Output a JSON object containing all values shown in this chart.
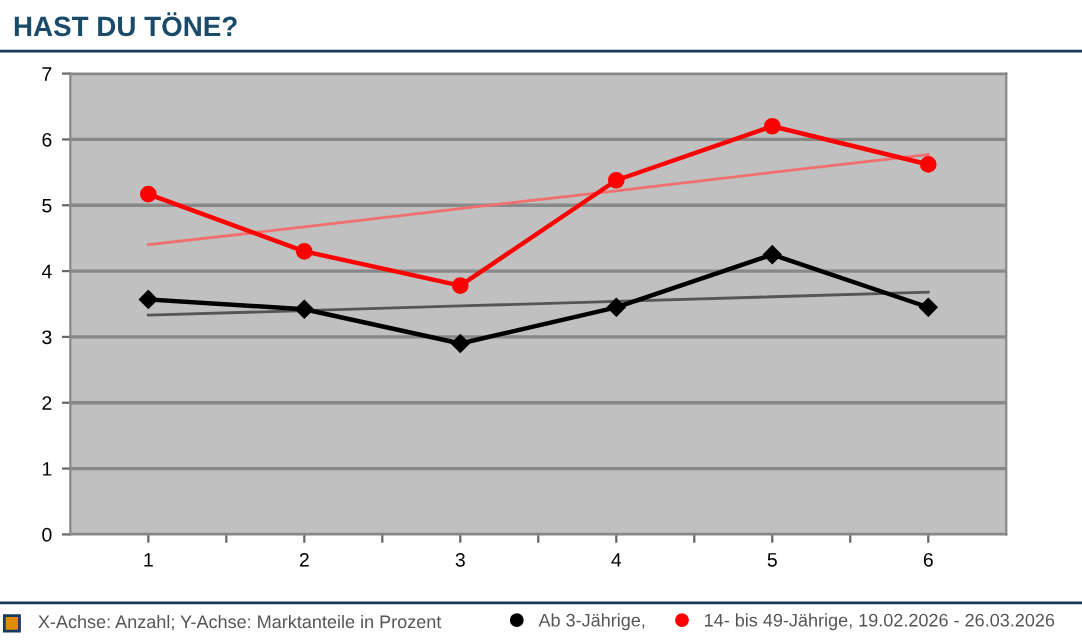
{
  "chart_data": {
    "type": "line",
    "title": "HAST DU TÖNE?",
    "x": [
      1,
      2,
      3,
      4,
      5,
      6
    ],
    "series": [
      {
        "name": "Ab 3-Jährige,",
        "color": "#000000",
        "marker": "diamond",
        "values": [
          3.57,
          3.42,
          2.9,
          3.45,
          4.25,
          3.45
        ]
      },
      {
        "name": "14- bis 49-Jährige, 19.02.2026 - 26.03.2026",
        "color": "#ff0000",
        "marker": "circle",
        "values": [
          5.17,
          4.3,
          3.78,
          5.38,
          6.2,
          5.62
        ]
      },
      {
        "color": "#555555",
        "marker": "none",
        "values": [
          3.33,
          3.4,
          3.47,
          3.54,
          3.61,
          3.68
        ]
      },
      {
        "color": "#f07070",
        "marker": "none",
        "values": [
          4.4,
          4.67,
          4.95,
          5.22,
          5.5,
          5.77
        ]
      }
    ],
    "xlim": [
      0.5,
      6.5
    ],
    "xticks": [
      1,
      {
        "value": 1.5,
        "label": null
      },
      2,
      {
        "value": 2.5,
        "label": null
      },
      3,
      {
        "value": 3.5,
        "label": null
      },
      4,
      {
        "value": 4.5,
        "label": null
      },
      5,
      {
        "value": 5.5,
        "label": null
      },
      6
    ],
    "ylim": [
      0,
      7
    ],
    "yticks": [
      0,
      1,
      2,
      3,
      4,
      5,
      6,
      7
    ],
    "grid": "y",
    "legend": "bottom",
    "annotations": [
      "X-Achse: Anzahl; Y-Achse: Marktanteile in Prozent"
    ]
  }
}
